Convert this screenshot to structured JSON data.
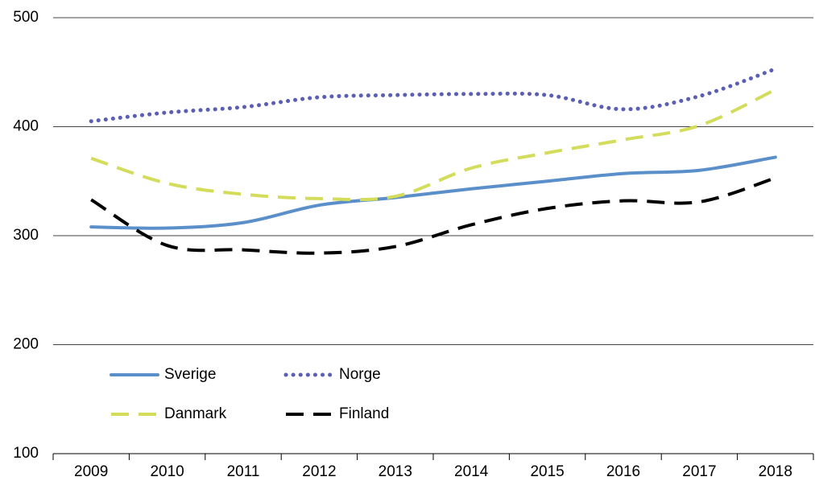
{
  "chart_data": {
    "type": "line",
    "categories": [
      "2009",
      "2010",
      "2011",
      "2012",
      "2013",
      "2014",
      "2015",
      "2016",
      "2017",
      "2018"
    ],
    "series": [
      {
        "name": "Sverige",
        "color": "#5b8fc9",
        "style": "solid",
        "values": [
          308,
          307,
          312,
          328,
          335,
          343,
          350,
          357,
          360,
          372
        ]
      },
      {
        "name": "Norge",
        "color": "#5a5fb5",
        "style": "dotted",
        "values": [
          405,
          413,
          418,
          427,
          429,
          430,
          429,
          416,
          428,
          453
        ]
      },
      {
        "name": "Danmark",
        "color": "#d4dc5c",
        "style": "dashed",
        "values": [
          371,
          348,
          338,
          334,
          336,
          362,
          376,
          388,
          401,
          434
        ]
      },
      {
        "name": "Finland",
        "color": "#000000",
        "style": "dashed",
        "values": [
          333,
          291,
          287,
          284,
          290,
          310,
          325,
          332,
          331,
          353
        ]
      }
    ],
    "ylim": [
      100,
      500
    ],
    "yticks": [
      100,
      200,
      300,
      400,
      500
    ],
    "grid": true,
    "legend": "lower left"
  }
}
